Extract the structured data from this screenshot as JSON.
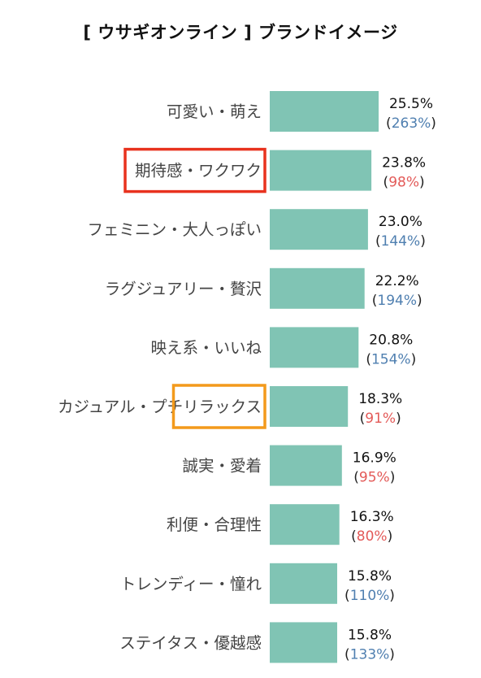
{
  "chart_data": {
    "type": "bar",
    "orientation": "horizontal",
    "title": "[ ウサギオンライン ] ブランドイメージ",
    "categories": [
      "可愛い・萌え",
      "期待感・ワクワク",
      "フェミニン・大人っぽい",
      "ラグジュアリー・贅沢",
      "映え系・いいね",
      "カジュアル・プチリラックス",
      "誠実・愛着",
      "利便・合理性",
      "トレンディー・憧れ",
      "ステイタス・優越感"
    ],
    "values": [
      25.5,
      23.8,
      23.0,
      22.2,
      20.8,
      18.3,
      16.9,
      16.3,
      15.8,
      15.8
    ],
    "value_labels": [
      "25.5%",
      "23.8%",
      "23.0%",
      "22.2%",
      "20.8%",
      "18.3%",
      "16.9%",
      "16.3%",
      "15.8%",
      "15.8%"
    ],
    "index_values": [
      263,
      98,
      144,
      194,
      154,
      91,
      95,
      80,
      110,
      133
    ],
    "index_labels": [
      "263%",
      "98%",
      "144%",
      "194%",
      "154%",
      "91%",
      "95%",
      "80%",
      "110%",
      "133%"
    ],
    "highlighted_categories": [
      {
        "category": "期待感・ワクワク",
        "color": "#e8321e"
      },
      {
        "category": "リラックス",
        "color": "#f39a1c"
      }
    ],
    "colors": {
      "bar": "#80c4b4",
      "index_above_100": "#4f7fb0",
      "index_below_100": "#e35a58"
    }
  }
}
